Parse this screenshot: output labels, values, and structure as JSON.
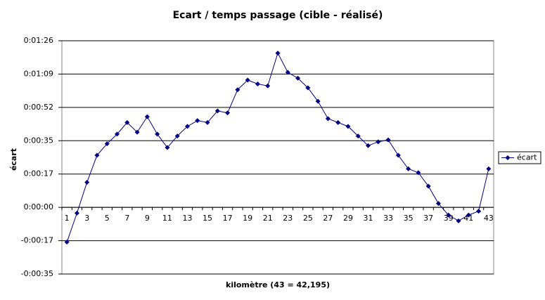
{
  "chart_data": {
    "type": "line",
    "title": "Ecart / temps passage (cible - réalisé)",
    "x_label": "kilomètre (43 = 42,195)",
    "y_label": "écart",
    "categories": [
      "1",
      null,
      "3",
      null,
      "5",
      null,
      "7",
      null,
      "9",
      null,
      "11",
      null,
      "13",
      null,
      "15",
      null,
      "17",
      null,
      "19",
      null,
      "21",
      null,
      "23",
      null,
      "25",
      null,
      "27",
      null,
      "29",
      null,
      "31",
      null,
      "33",
      null,
      "35",
      null,
      "37",
      null,
      "39",
      null,
      "41",
      null,
      "43"
    ],
    "series": [
      {
        "name": "écart",
        "color": "#000080",
        "values": [
          -18,
          -3,
          13,
          27,
          33,
          38,
          44,
          39,
          47,
          38,
          31,
          37,
          42,
          45,
          44,
          50,
          49,
          61,
          66,
          64,
          63,
          80,
          70,
          67,
          62,
          55,
          46,
          44,
          42,
          37,
          32,
          34,
          35,
          27,
          20,
          18,
          11,
          2,
          -4,
          -7,
          -4,
          -2,
          20
        ]
      }
    ],
    "ylim": [
      -34.56,
      86.4
    ],
    "yticks": [
      {
        "value": -34.56,
        "label": "-0:00:35"
      },
      {
        "value": -17.28,
        "label": "-0:00:17"
      },
      {
        "value": 0,
        "label": "0:00:00"
      },
      {
        "value": 17.28,
        "label": "0:00:17"
      },
      {
        "value": 34.56,
        "label": "0:00:35"
      },
      {
        "value": 51.84,
        "label": "0:00:52"
      },
      {
        "value": 69.12,
        "label": "0:01:09"
      },
      {
        "value": 86.4,
        "label": "0:01:26"
      }
    ],
    "grid": true,
    "legend": "right"
  }
}
